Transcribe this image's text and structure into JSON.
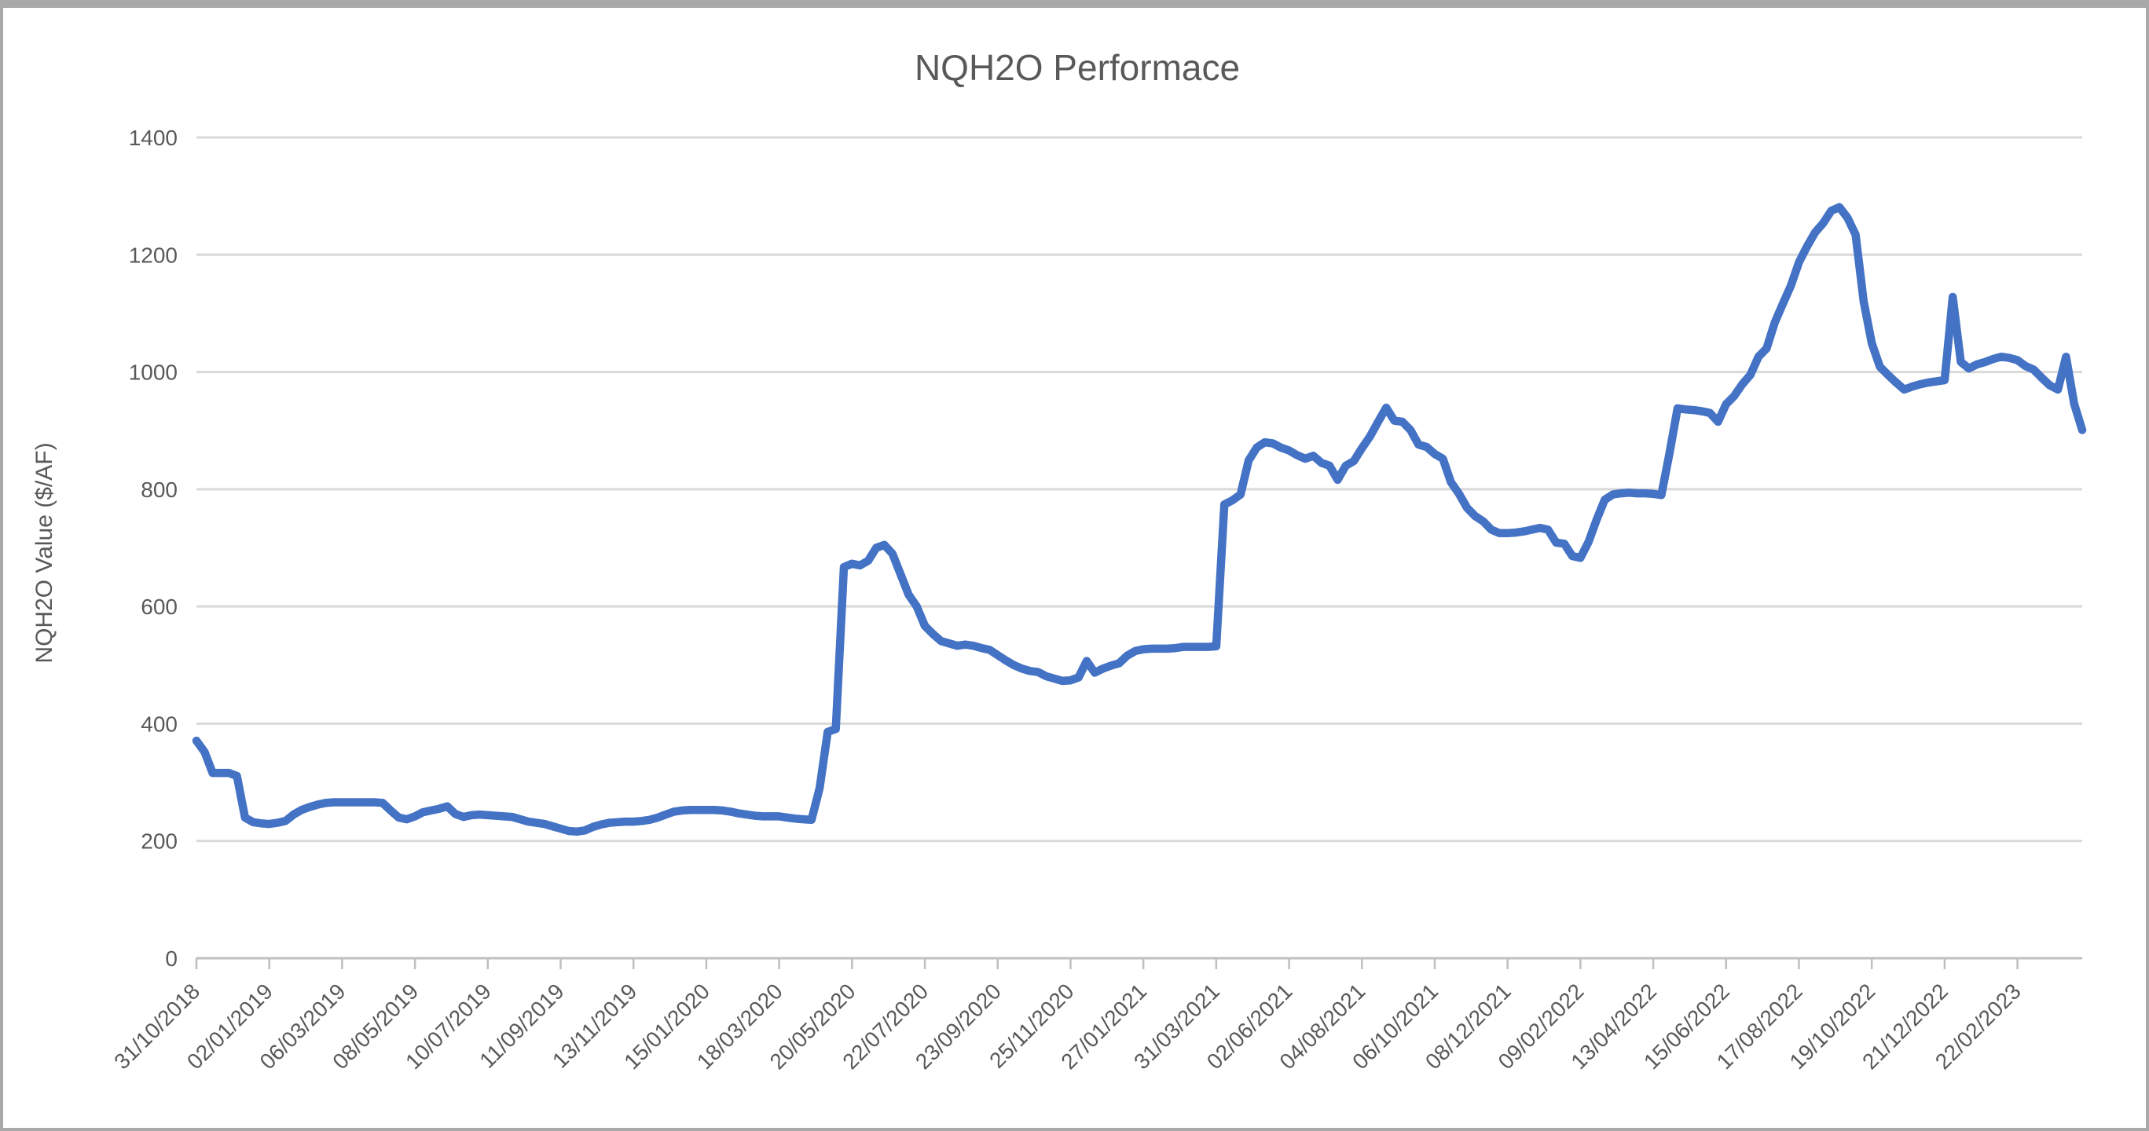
{
  "chart_data": {
    "type": "line",
    "title": "NQH2O Performace",
    "xlabel": "",
    "ylabel": "NQH2O Value ($/AF)",
    "ylim": [
      0,
      1400
    ],
    "yticks": [
      0,
      200,
      400,
      600,
      800,
      1000,
      1200,
      1400
    ],
    "grid": "horizontal",
    "legend": "none",
    "x_label_interval_points": 9,
    "x_tick_labels": [
      "31/10/2018",
      "02/01/2019",
      "06/03/2019",
      "08/05/2019",
      "10/07/2019",
      "11/09/2019",
      "13/11/2019",
      "15/01/2020",
      "18/03/2020",
      "20/05/2020",
      "22/07/2020",
      "23/09/2020",
      "25/11/2020",
      "27/01/2021",
      "31/03/2021",
      "02/06/2021",
      "04/08/2021",
      "06/10/2021",
      "08/12/2021",
      "09/02/2022",
      "13/04/2022",
      "15/06/2022",
      "17/08/2022",
      "19/10/2022",
      "21/12/2022",
      "22/02/2023"
    ],
    "series": [
      {
        "color": "#4472C4",
        "frequency": "weekly",
        "values": [
          371,
          352,
          316,
          316,
          316,
          311,
          240,
          232,
          230,
          229,
          231,
          234,
          245,
          253,
          258,
          262,
          265,
          266,
          266,
          266,
          266,
          266,
          266,
          265,
          252,
          240,
          237,
          242,
          249,
          252,
          255,
          259,
          246,
          241,
          244,
          245,
          244,
          243,
          242,
          241,
          237,
          233,
          231,
          229,
          225,
          221,
          217,
          216,
          218,
          224,
          228,
          231,
          232,
          233,
          233,
          234,
          236,
          240,
          245,
          250,
          252,
          253,
          253,
          253,
          253,
          252,
          250,
          247,
          245,
          243,
          242,
          242,
          242,
          240,
          238,
          237,
          236,
          290,
          386,
          391,
          667,
          673,
          670,
          678,
          700,
          705,
          690,
          655,
          620,
          600,
          567,
          553,
          541,
          537,
          533,
          535,
          533,
          529,
          526,
          517,
          508,
          500,
          494,
          490,
          488,
          481,
          477,
          473,
          474,
          479,
          507,
          487,
          494,
          499,
          503,
          516,
          524,
          527,
          528,
          528,
          528,
          529,
          531,
          531,
          531,
          531,
          532,
          774,
          781,
          791,
          849,
          871,
          880,
          878,
          871,
          866,
          858,
          852,
          857,
          845,
          840,
          816,
          840,
          848,
          870,
          890,
          915,
          939,
          917,
          915,
          901,
          876,
          872,
          860,
          852,
          812,
          792,
          768,
          754,
          745,
          731,
          725,
          725,
          726,
          728,
          731,
          734,
          731,
          709,
          707,
          686,
          683,
          710,
          748,
          782,
          791,
          793,
          794,
          793,
          793,
          792,
          790,
          861,
          938,
          936,
          935,
          933,
          930,
          915,
          945,
          959,
          979,
          995,
          1026,
          1040,
          1084,
          1116,
          1147,
          1187,
          1214,
          1238,
          1254,
          1275,
          1281,
          1263,
          1234,
          1120,
          1049,
          1009,
          995,
          982,
          970,
          975,
          979,
          982,
          984,
          986,
          1128,
          1017,
          1006,
          1013,
          1017,
          1022,
          1026,
          1024,
          1020,
          1010,
          1004,
          990,
          977,
          970,
          1026,
          946,
          901
        ]
      }
    ],
    "colors": {
      "line": "#4472C4",
      "text": "#595959",
      "gridline": "#d9d9d9",
      "axis": "#bfbfbf",
      "background": "#ffffff",
      "frame_border": "#a9a9a9"
    }
  }
}
